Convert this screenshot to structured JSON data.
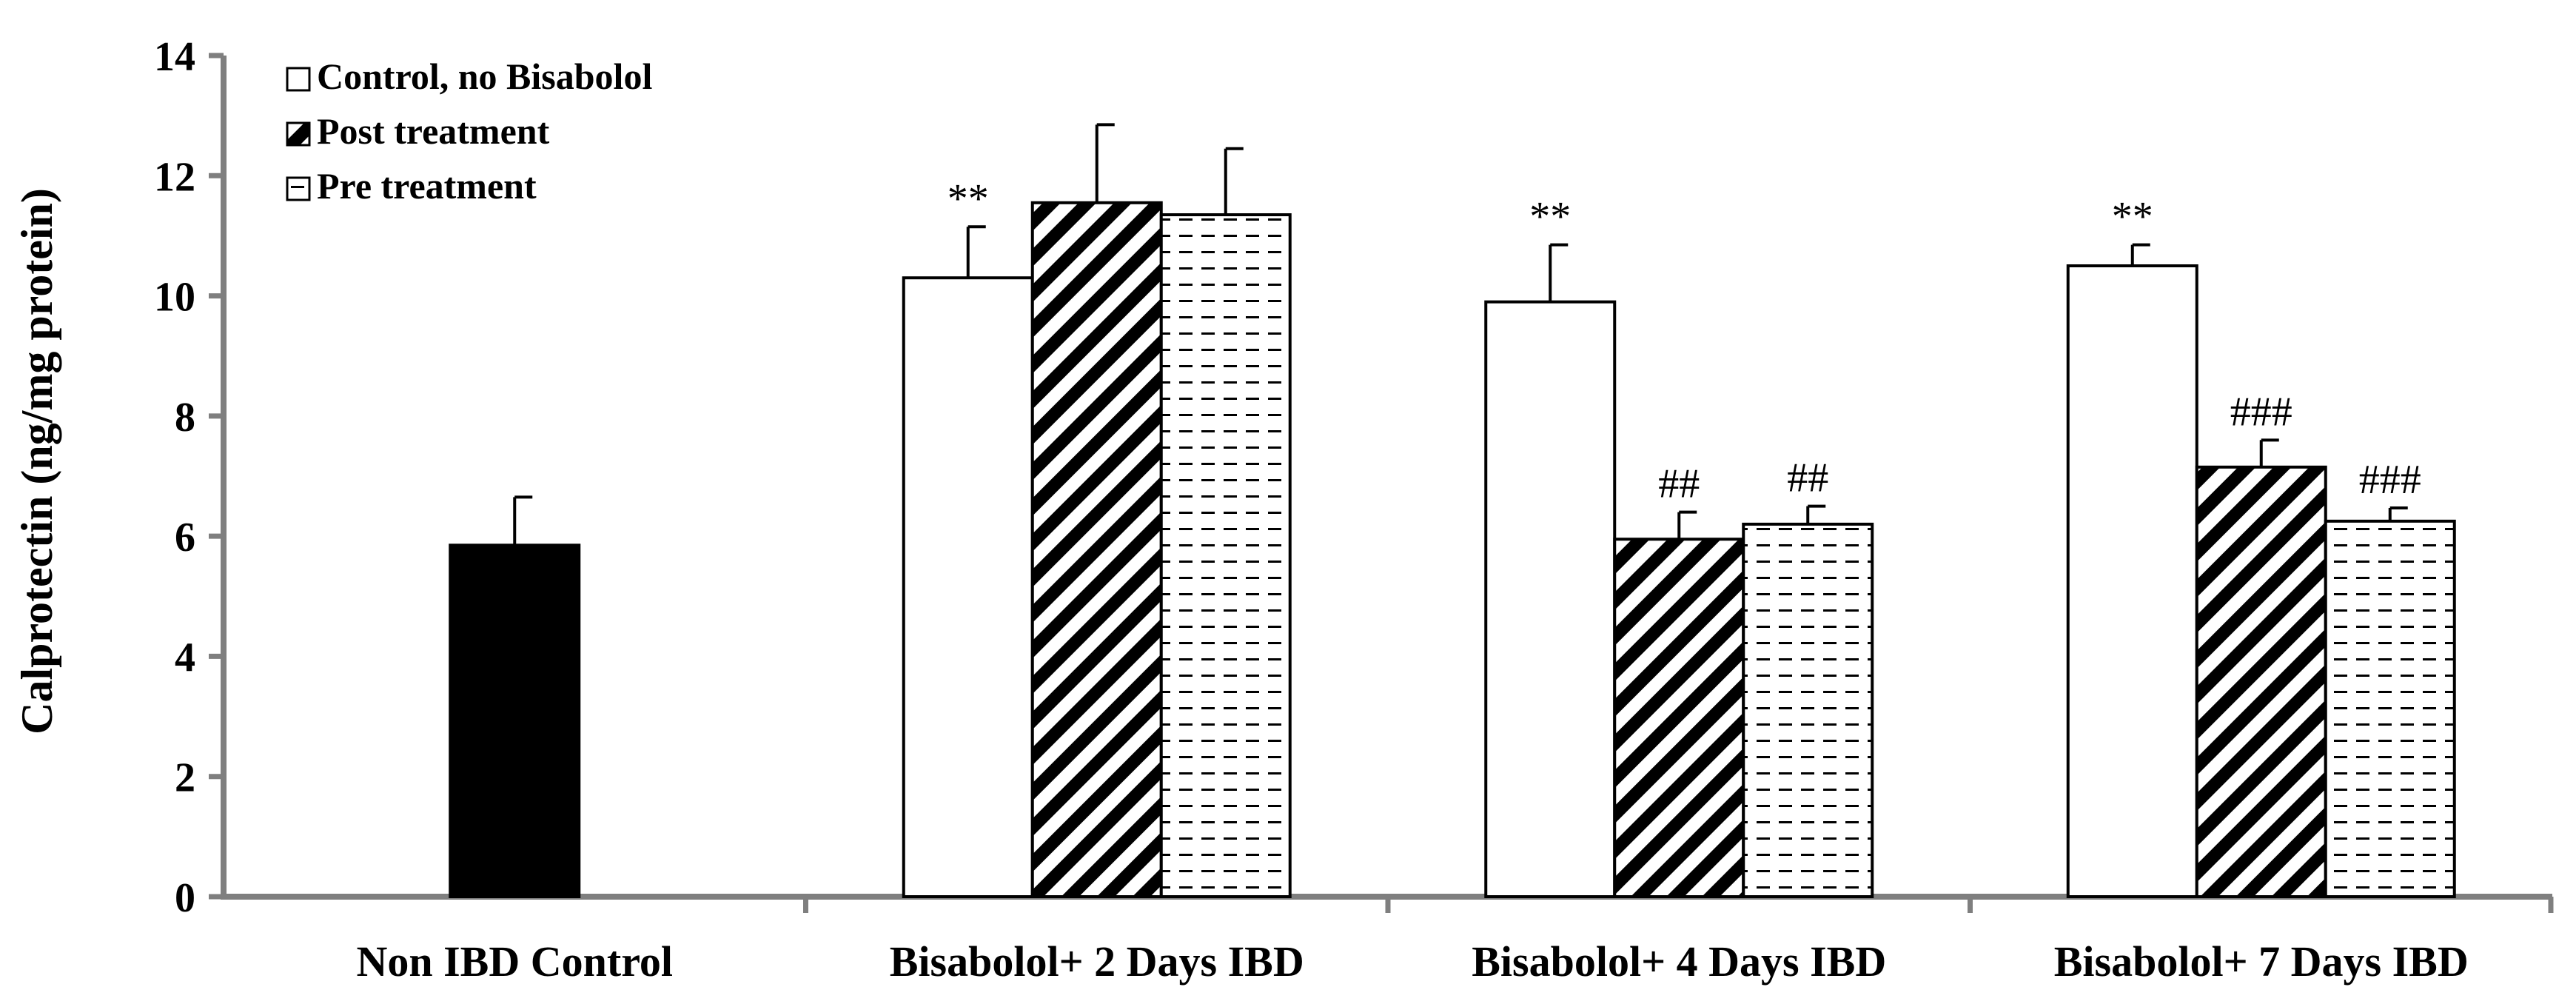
{
  "chart_data": {
    "type": "bar",
    "ylabel": "Calprotectin (ng/mg protein)",
    "xlabel": "",
    "ylim": [
      0,
      14
    ],
    "yticks": [
      0,
      2,
      4,
      6,
      8,
      10,
      12,
      14
    ],
    "grid": false,
    "legend_position": "top-left",
    "legend": [
      {
        "label": "Control, no Bisabolol",
        "pattern": "white"
      },
      {
        "label": "Post treatment",
        "pattern": "diagonal-hatch"
      },
      {
        "label": "Pre treatment",
        "pattern": "horizontal-dash"
      }
    ],
    "groups": [
      {
        "category": "Non IBD Control",
        "bars": [
          {
            "series": "Non IBD Control",
            "pattern": "black",
            "value": 5.85,
            "error": 0.8,
            "annotation": ""
          }
        ]
      },
      {
        "category": "Bisabolol+ 2 Days IBD",
        "bars": [
          {
            "series": "Control, no Bisabolol",
            "pattern": "white",
            "value": 10.3,
            "error": 0.85,
            "annotation": "**"
          },
          {
            "series": "Post treatment",
            "pattern": "diagonal-hatch",
            "value": 11.55,
            "error": 1.3,
            "annotation": ""
          },
          {
            "series": "Pre treatment",
            "pattern": "horizontal-dash",
            "value": 11.35,
            "error": 1.1,
            "annotation": ""
          }
        ]
      },
      {
        "category": "Bisabolol+ 4 Days IBD",
        "bars": [
          {
            "series": "Control, no Bisabolol",
            "pattern": "white",
            "value": 9.9,
            "error": 0.95,
            "annotation": "**"
          },
          {
            "series": "Post treatment",
            "pattern": "diagonal-hatch",
            "value": 5.95,
            "error": 0.45,
            "annotation": "##"
          },
          {
            "series": "Pre treatment",
            "pattern": "horizontal-dash",
            "value": 6.2,
            "error": 0.3,
            "annotation": "##"
          }
        ]
      },
      {
        "category": "Bisabolol+ 7 Days IBD",
        "bars": [
          {
            "series": "Control, no Bisabolol",
            "pattern": "white",
            "value": 10.5,
            "error": 0.35,
            "annotation": "**"
          },
          {
            "series": "Post treatment",
            "pattern": "diagonal-hatch",
            "value": 7.15,
            "error": 0.45,
            "annotation": "###"
          },
          {
            "series": "Pre treatment",
            "pattern": "horizontal-dash",
            "value": 6.25,
            "error": 0.22,
            "annotation": "###"
          }
        ]
      }
    ],
    "colors": {
      "axis": "#7f7f7f",
      "bar_stroke": "#000000",
      "black_fill": "#000000",
      "white_fill": "#ffffff"
    }
  }
}
